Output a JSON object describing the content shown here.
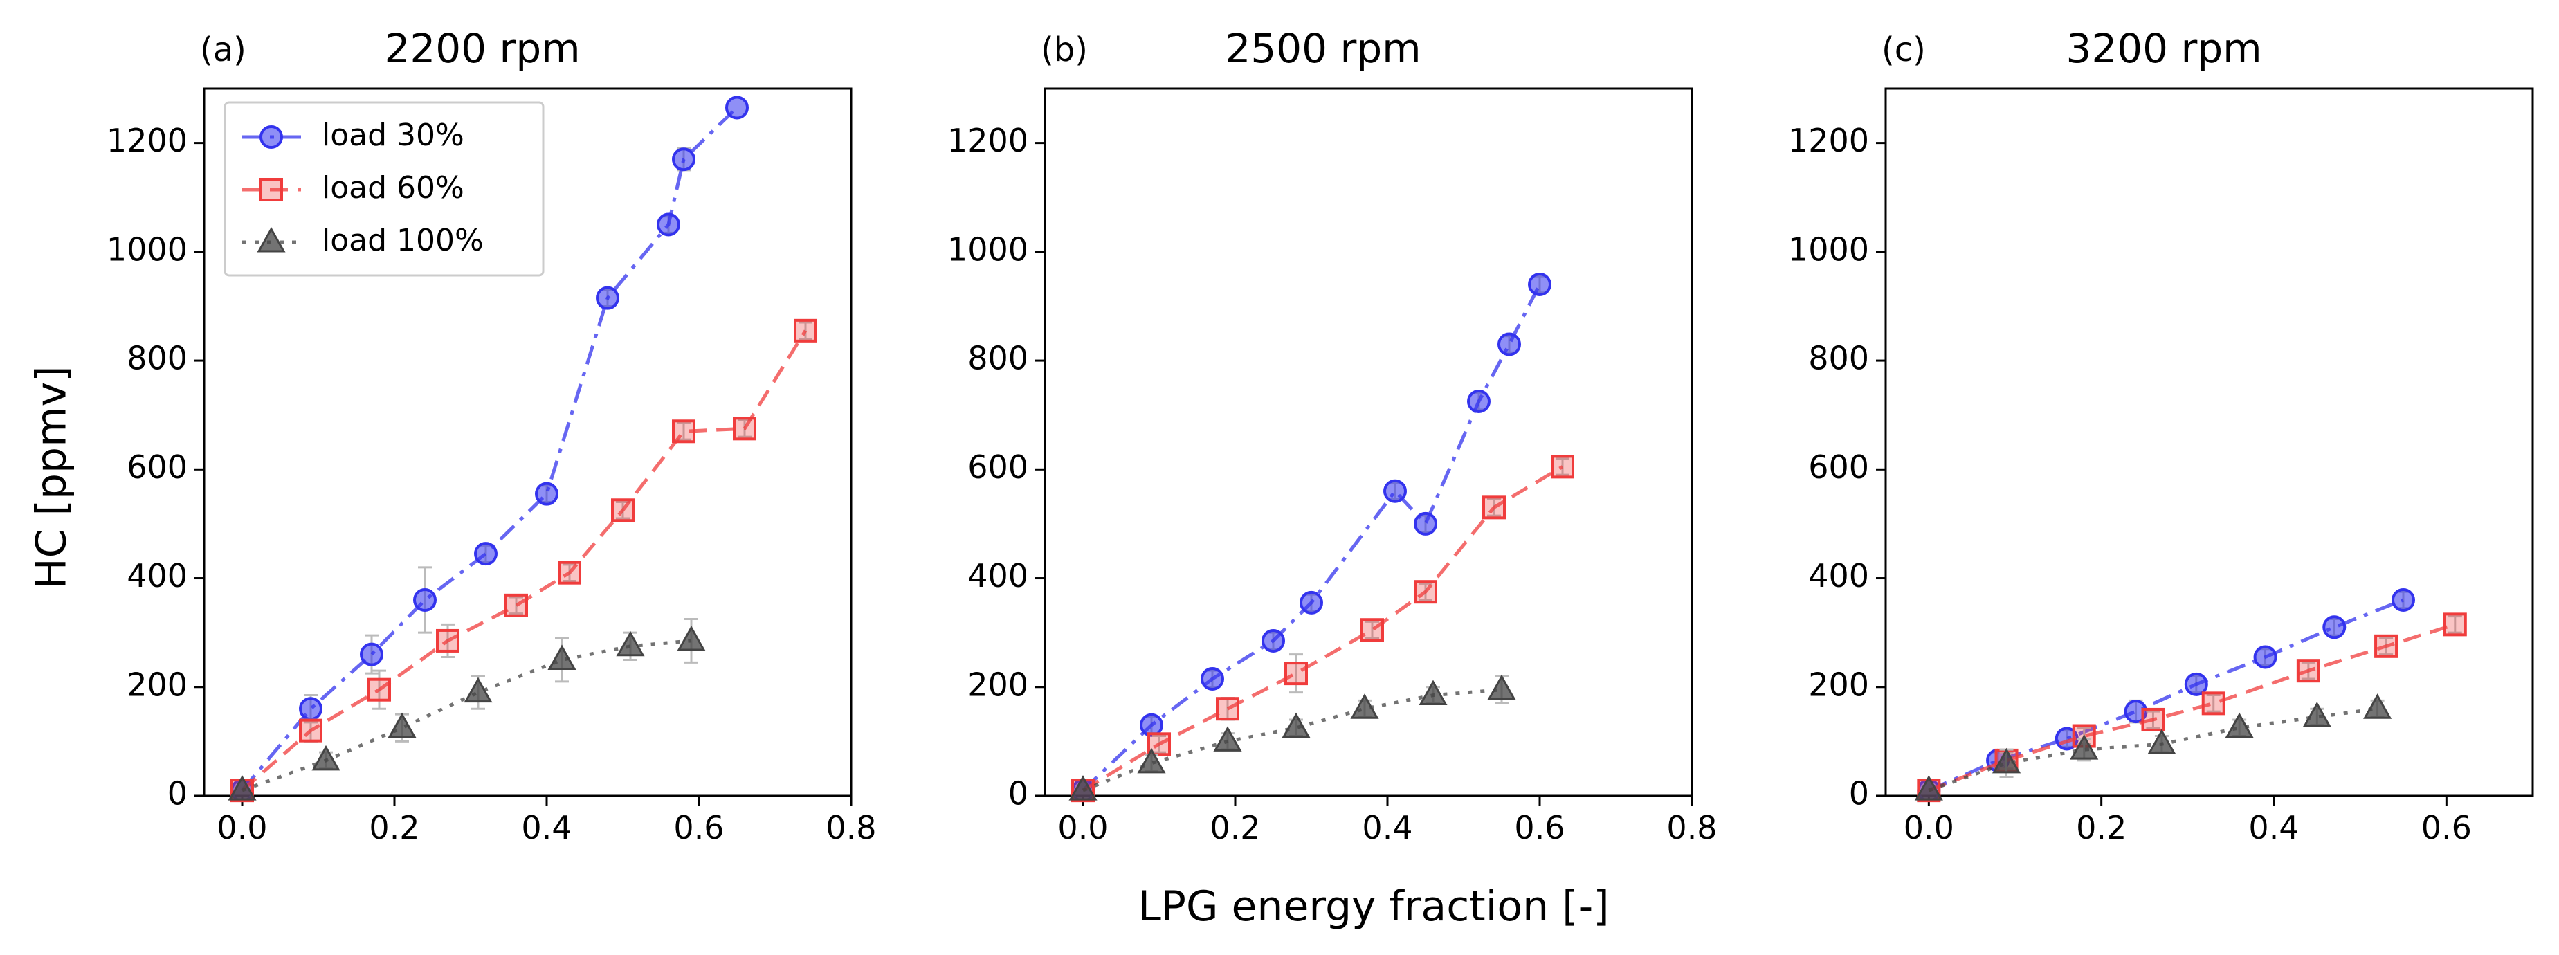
{
  "figure": {
    "ylabel": "HC [ppmv]",
    "xlabel": "LPG energy fraction [-]"
  },
  "legend": [
    {
      "label": "load 30%",
      "color": "#3333ee",
      "marker": "circle",
      "dash": "dashdot"
    },
    {
      "label": "load 60%",
      "color": "#f03c3c",
      "marker": "square",
      "dash": "dashed"
    },
    {
      "label": "load 100%",
      "color": "#444444",
      "marker": "triangle",
      "dash": "dotted"
    }
  ],
  "chart_data": [
    {
      "type": "line",
      "letter": "(a)",
      "title": "2200 rpm",
      "xlim": [
        -0.05,
        0.8
      ],
      "ylim": [
        0,
        1300
      ],
      "xticks": [
        "0.0",
        "0.2",
        "0.4",
        "0.6",
        "0.8"
      ],
      "yticks": [
        "0",
        "200",
        "400",
        "600",
        "800",
        "1000",
        "1200"
      ],
      "series": [
        {
          "name": "load 30%",
          "x": [
            0.0,
            0.09,
            0.17,
            0.24,
            0.32,
            0.4,
            0.48,
            0.56,
            0.58,
            0.65
          ],
          "y": [
            10,
            160,
            260,
            360,
            445,
            555,
            915,
            1050,
            1170,
            1265
          ],
          "err": [
            10,
            25,
            35,
            60,
            15,
            15,
            15,
            15,
            20,
            10
          ]
        },
        {
          "name": "load 60%",
          "x": [
            0.0,
            0.09,
            0.18,
            0.27,
            0.36,
            0.43,
            0.5,
            0.58,
            0.66,
            0.74
          ],
          "y": [
            10,
            120,
            195,
            285,
            350,
            410,
            525,
            670,
            675,
            855
          ],
          "err": [
            10,
            20,
            35,
            30,
            15,
            15,
            15,
            15,
            15,
            15
          ]
        },
        {
          "name": "load 100%",
          "x": [
            0.0,
            0.11,
            0.21,
            0.31,
            0.42,
            0.51,
            0.59
          ],
          "y": [
            10,
            65,
            125,
            190,
            250,
            275,
            285
          ],
          "err": [
            10,
            15,
            25,
            30,
            40,
            25,
            40
          ]
        }
      ]
    },
    {
      "type": "line",
      "letter": "(b)",
      "title": "2500 rpm",
      "xlim": [
        -0.05,
        0.8
      ],
      "ylim": [
        0,
        1300
      ],
      "xticks": [
        "0.0",
        "0.2",
        "0.4",
        "0.6",
        "0.8"
      ],
      "yticks": [
        "0",
        "200",
        "400",
        "600",
        "800",
        "1000",
        "1200"
      ],
      "series": [
        {
          "name": "load 30%",
          "x": [
            0.0,
            0.09,
            0.17,
            0.25,
            0.3,
            0.41,
            0.45,
            0.52,
            0.56,
            0.6
          ],
          "y": [
            10,
            130,
            215,
            285,
            355,
            560,
            500,
            725,
            830,
            940
          ],
          "err": [
            10,
            15,
            15,
            15,
            15,
            15,
            15,
            15,
            15,
            15
          ]
        },
        {
          "name": "load 60%",
          "x": [
            0.0,
            0.1,
            0.19,
            0.28,
            0.38,
            0.45,
            0.54,
            0.63
          ],
          "y": [
            10,
            95,
            160,
            225,
            305,
            375,
            530,
            605
          ],
          "err": [
            10,
            15,
            20,
            35,
            15,
            15,
            15,
            15
          ]
        },
        {
          "name": "load 100%",
          "x": [
            0.0,
            0.09,
            0.19,
            0.28,
            0.37,
            0.46,
            0.55
          ],
          "y": [
            10,
            60,
            100,
            125,
            160,
            185,
            195
          ],
          "err": [
            10,
            15,
            15,
            15,
            15,
            15,
            25
          ]
        }
      ]
    },
    {
      "type": "line",
      "letter": "(c)",
      "title": "3200 rpm",
      "xlim": [
        -0.05,
        0.7
      ],
      "ylim": [
        0,
        1300
      ],
      "xticks": [
        "0.0",
        "0.2",
        "0.4",
        "0.6"
      ],
      "yticks": [
        "0",
        "200",
        "400",
        "600",
        "800",
        "1000",
        "1200"
      ],
      "series": [
        {
          "name": "load 30%",
          "x": [
            0.0,
            0.08,
            0.16,
            0.24,
            0.31,
            0.39,
            0.47,
            0.55
          ],
          "y": [
            10,
            65,
            105,
            155,
            205,
            255,
            310,
            360
          ],
          "err": [
            10,
            15,
            15,
            20,
            15,
            15,
            15,
            15
          ]
        },
        {
          "name": "load 60%",
          "x": [
            0.0,
            0.09,
            0.18,
            0.26,
            0.33,
            0.44,
            0.53,
            0.61
          ],
          "y": [
            10,
            65,
            110,
            140,
            170,
            230,
            275,
            315
          ],
          "err": [
            10,
            15,
            15,
            15,
            15,
            15,
            15,
            15
          ]
        },
        {
          "name": "load 100%",
          "x": [
            0.0,
            0.09,
            0.18,
            0.27,
            0.36,
            0.45,
            0.52
          ],
          "y": [
            10,
            60,
            85,
            95,
            125,
            145,
            160
          ],
          "err": [
            10,
            25,
            20,
            15,
            15,
            15,
            15
          ]
        }
      ]
    }
  ]
}
